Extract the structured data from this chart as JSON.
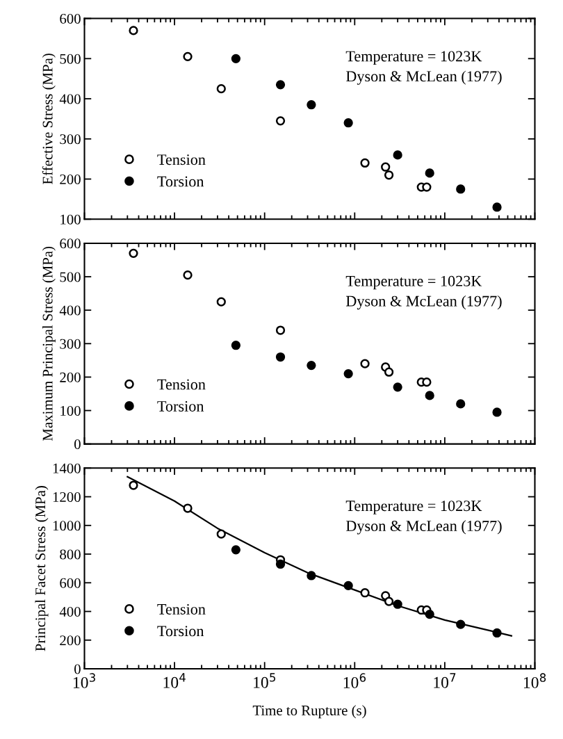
{
  "chart_data": [
    {
      "type": "scatter",
      "ylabel": "Effective Stress (MPa)",
      "xlim": [
        1000,
        100000000
      ],
      "ylim": [
        100,
        600
      ],
      "yticks": [
        100,
        200,
        300,
        400,
        500,
        600
      ],
      "log": "x",
      "tick_labels": "y",
      "legend": "bottom left",
      "grid": false,
      "annotations": [
        "Temperature = 1023K",
        "Dyson & McLean (1977)"
      ],
      "series": [
        {
          "name": "Tension",
          "marker": "circle",
          "color": "#ffffff",
          "x": [
            3500,
            14000,
            33000,
            150000,
            1300000,
            2200000,
            2400000,
            5500000,
            6300000
          ],
          "values": [
            570,
            505,
            425,
            345,
            240,
            230,
            210,
            180,
            180
          ]
        },
        {
          "name": "Torsion",
          "marker": "circle",
          "color": "#000000",
          "x": [
            48000,
            150000,
            330000,
            850000,
            3000000,
            6800000,
            15000000,
            38000000
          ],
          "values": [
            500,
            435,
            385,
            340,
            260,
            215,
            175,
            130
          ]
        }
      ]
    },
    {
      "type": "scatter",
      "ylabel": "Maximum Principal Stress (MPa)",
      "xlim": [
        1000,
        100000000
      ],
      "ylim": [
        0,
        600
      ],
      "yticks": [
        0,
        100,
        200,
        300,
        400,
        500,
        600
      ],
      "log": "x",
      "tick_labels": "y",
      "legend": "bottom left",
      "grid": false,
      "annotations": [
        "Temperature = 1023K",
        "Dyson & McLean (1977)"
      ],
      "series": [
        {
          "name": "Tension",
          "marker": "circle",
          "color": "#ffffff",
          "x": [
            3500,
            14000,
            33000,
            150000,
            1300000,
            2200000,
            2400000,
            5500000,
            6300000
          ],
          "values": [
            570,
            505,
            425,
            340,
            240,
            230,
            215,
            185,
            185
          ]
        },
        {
          "name": "Torsion",
          "marker": "circle",
          "color": "#000000",
          "x": [
            48000,
            150000,
            330000,
            850000,
            3000000,
            6800000,
            15000000,
            38000000
          ],
          "values": [
            295,
            260,
            235,
            210,
            170,
            145,
            120,
            95
          ]
        }
      ]
    },
    {
      "type": "scatter",
      "ylabel": "Principal Facet Stress (MPa)",
      "xlabel": "Time to Rupture (s)",
      "xlim": [
        1000,
        100000000
      ],
      "xticks": [
        {
          "value": 1000,
          "label": "10$^{3}$"
        },
        {
          "value": 10000,
          "label": "10$^{4}$"
        },
        {
          "value": 100000,
          "label": "10$^{5}$"
        },
        {
          "value": 1000000,
          "label": "10$^{6}$"
        },
        {
          "value": 10000000,
          "label": "10$^{7}$"
        },
        {
          "value": 100000000,
          "label": "10$^{8}$"
        }
      ],
      "ylim": [
        0,
        1400
      ],
      "yticks": [
        0,
        200,
        400,
        600,
        800,
        1000,
        1200,
        1400
      ],
      "log": "x",
      "legend": "bottom left",
      "grid": false,
      "annotations": [
        "Temperature = 1023K",
        "Dyson & McLean (1977)"
      ],
      "series": [
        {
          "name": "Tension",
          "marker": "circle",
          "color": "#ffffff",
          "x": [
            3500,
            14000,
            33000,
            150000,
            1300000,
            2200000,
            2400000,
            5500000,
            6300000
          ],
          "values": [
            1280,
            1120,
            940,
            760,
            530,
            510,
            470,
            410,
            410
          ]
        },
        {
          "name": "Torsion",
          "marker": "circle",
          "color": "#000000",
          "x": [
            48000,
            150000,
            330000,
            850000,
            3000000,
            6800000,
            15000000,
            38000000
          ],
          "values": [
            830,
            730,
            650,
            580,
            450,
            380,
            310,
            250
          ]
        },
        {
          "type": "line",
          "marker": "none",
          "line_style": "solid",
          "color": "#000000",
          "x": [
            3000,
            10000,
            30000,
            100000,
            300000,
            1000000,
            3000000,
            10000000,
            30000000,
            55000000
          ],
          "values": [
            1340,
            1170,
            980,
            810,
            670,
            550,
            440,
            340,
            270,
            230
          ]
        }
      ]
    }
  ]
}
